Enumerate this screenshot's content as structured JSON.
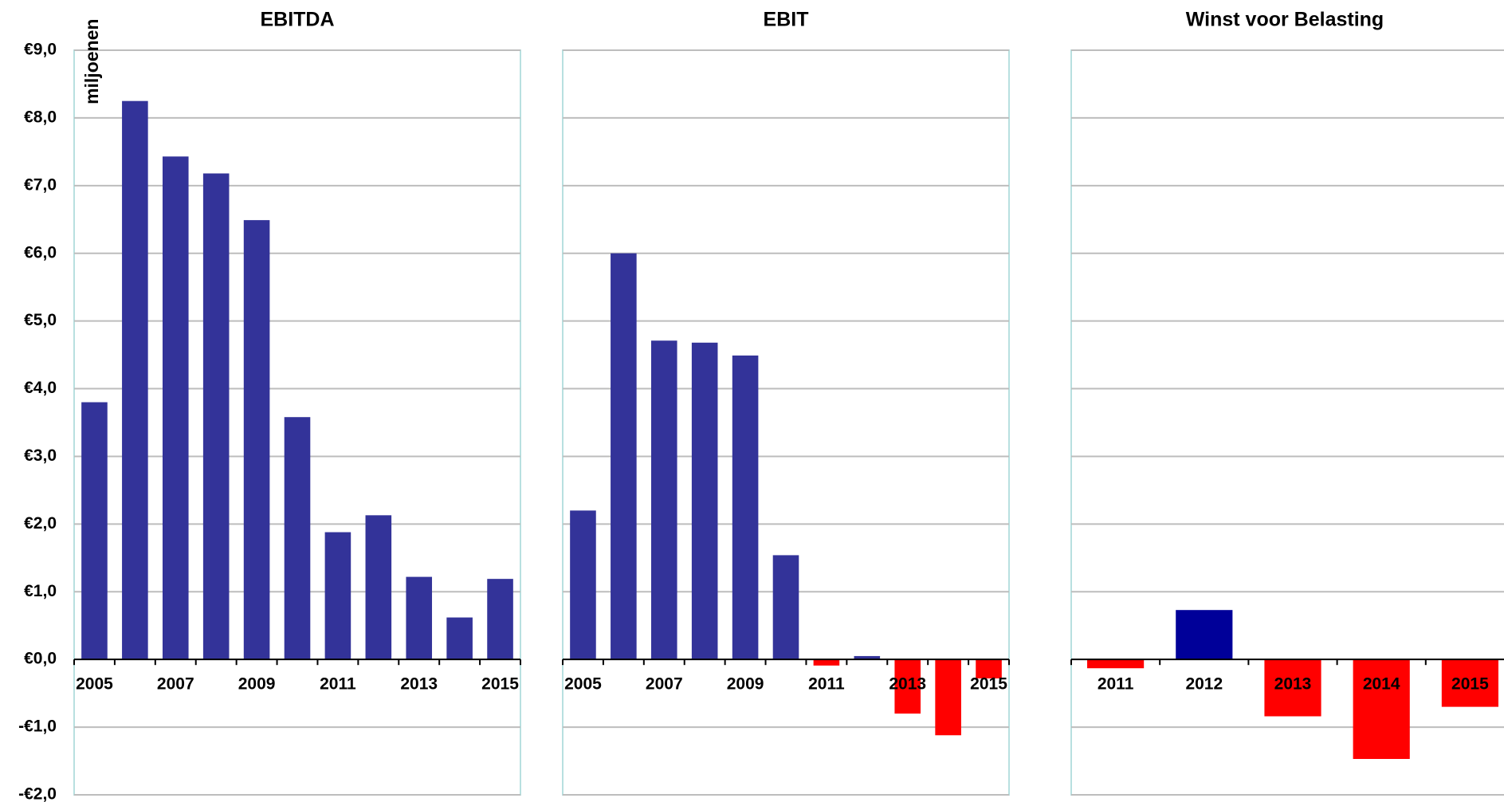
{
  "chart_data": [
    {
      "type": "bar",
      "title": "EBITDA",
      "ylabel": "miljoenen",
      "categories": [
        "2005",
        null,
        "2007",
        null,
        "2009",
        null,
        "2011",
        null,
        "2013",
        null,
        "2015"
      ],
      "values": [
        3.8,
        8.25,
        7.43,
        7.18,
        6.49,
        3.58,
        1.88,
        2.13,
        1.22,
        0.62,
        1.19
      ],
      "colors": [
        "#333399",
        "#333399",
        "#333399",
        "#333399",
        "#333399",
        "#333399",
        "#333399",
        "#333399",
        "#333399",
        "#333399",
        "#333399"
      ],
      "ylim": [
        -2,
        9
      ],
      "yticks": [
        {
          "value": -2,
          "label": "-€2,0"
        },
        {
          "value": -1,
          "label": "-€1,0"
        },
        {
          "value": 0,
          "label": "€0,0"
        },
        {
          "value": 1,
          "label": "€1,0"
        },
        {
          "value": 2,
          "label": "€2,0"
        },
        {
          "value": 3,
          "label": "€3,0"
        },
        {
          "value": 4,
          "label": "€4,0"
        },
        {
          "value": 5,
          "label": "€5,0"
        },
        {
          "value": 6,
          "label": "€6,0"
        },
        {
          "value": 7,
          "label": "€7,0"
        },
        {
          "value": 8,
          "label": "€8,0"
        },
        {
          "value": 9,
          "label": "€9,0"
        }
      ],
      "grid": true
    },
    {
      "type": "bar",
      "title": "EBIT",
      "categories": [
        "2005",
        null,
        "2007",
        null,
        "2009",
        null,
        "2011",
        null,
        "2013",
        null,
        "2015"
      ],
      "values": [
        2.2,
        6.0,
        4.71,
        4.68,
        4.49,
        1.54,
        -0.09,
        0.05,
        -0.8,
        -1.12,
        -0.28
      ],
      "colors": [
        "#333399",
        "#333399",
        "#333399",
        "#333399",
        "#333399",
        "#333399",
        "#ff0000",
        "#333399",
        "#ff0000",
        "#ff0000",
        "#ff0000"
      ],
      "ylim": [
        -2,
        9
      ],
      "yticks": [
        -2,
        -1,
        0,
        1,
        2,
        3,
        4,
        5,
        6,
        7,
        8,
        9
      ],
      "grid": true
    },
    {
      "type": "bar",
      "title": "Winst voor Belasting",
      "categories": [
        "2011",
        "2012",
        "2013",
        "2014",
        "2015"
      ],
      "values": [
        -0.13,
        0.73,
        -0.84,
        -1.47,
        -0.7
      ],
      "colors": [
        "#ff0000",
        "#000099",
        "#ff0000",
        "#ff0000",
        "#ff0000"
      ],
      "ylim": [
        -2,
        9
      ],
      "yticks": [
        -2,
        -1,
        0,
        1,
        2,
        3,
        4,
        5,
        6,
        7,
        8,
        9
      ],
      "grid": true
    }
  ]
}
